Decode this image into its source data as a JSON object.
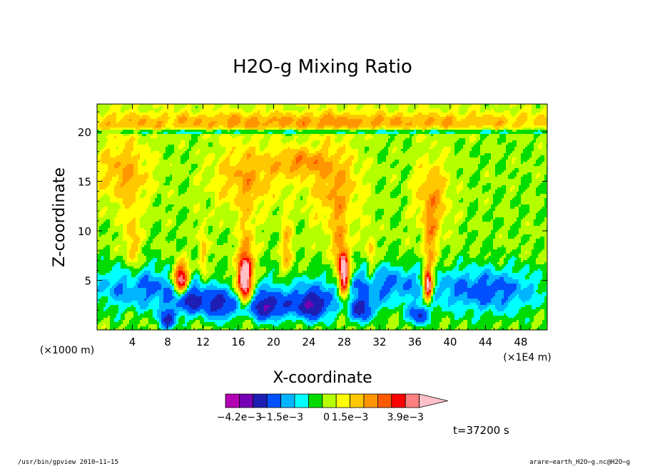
{
  "chart_data": {
    "type": "heatmap",
    "title": "H2O-g Mixing Ratio",
    "xlabel": "X-coordinate",
    "ylabel": "Z-coordinate",
    "x_unit_left": "(×1000 m)",
    "x_unit_right": "(×1E4 m)",
    "x_ticks": [
      "4",
      "8",
      "12",
      "16",
      "20",
      "24",
      "28",
      "32",
      "36",
      "40",
      "44",
      "48"
    ],
    "x_tick_values": [
      4,
      8,
      12,
      16,
      20,
      24,
      28,
      32,
      36,
      40,
      44,
      48
    ],
    "y_ticks": [
      "5",
      "10",
      "15",
      "20"
    ],
    "y_tick_values": [
      5,
      10,
      15,
      20
    ],
    "xlim": [
      0,
      51
    ],
    "ylim": [
      0,
      22.8
    ],
    "grid": false,
    "colorbar": {
      "labels": [
        "−4.2e−3",
        "−1.5e−3",
        "0",
        "1.5e−3",
        "3.9e−3"
      ],
      "colors": [
        "#b400b4",
        "#7800b4",
        "#1e1eb4",
        "#0050ff",
        "#00b4ff",
        "#00ffff",
        "#00dc00",
        "#b4ff00",
        "#ffff00",
        "#ffc800",
        "#ff9600",
        "#ff5a00",
        "#ff0000",
        "#ff8080",
        "#ffc0c8"
      ]
    },
    "features": [
      {
        "name": "background_green",
        "level": 0.0
      },
      {
        "name": "upper_yellow_band",
        "z_range": [
          19.5,
          22.5
        ],
        "sign": "positive"
      },
      {
        "name": "moist_plumes",
        "x_centers": [
          3,
          17,
          27,
          38
        ],
        "sign": "positive"
      },
      {
        "name": "cyan_lower_layer",
        "z_range": [
          1.5,
          6.5
        ],
        "sign": "negative"
      },
      {
        "name": "convective_cores",
        "x_centers": [
          9.5,
          16.5,
          28
        ],
        "sign": "strongly_positive"
      },
      {
        "name": "dry_blue_pockets",
        "z_range": [
          0,
          3
        ],
        "sign": "strongly_negative"
      }
    ]
  },
  "time_label": "t=37200 s",
  "footer_left": "/usr/bin/gpview  2010−11−15",
  "footer_right": "arare−earth_H2O−g.nc@H2O−g"
}
